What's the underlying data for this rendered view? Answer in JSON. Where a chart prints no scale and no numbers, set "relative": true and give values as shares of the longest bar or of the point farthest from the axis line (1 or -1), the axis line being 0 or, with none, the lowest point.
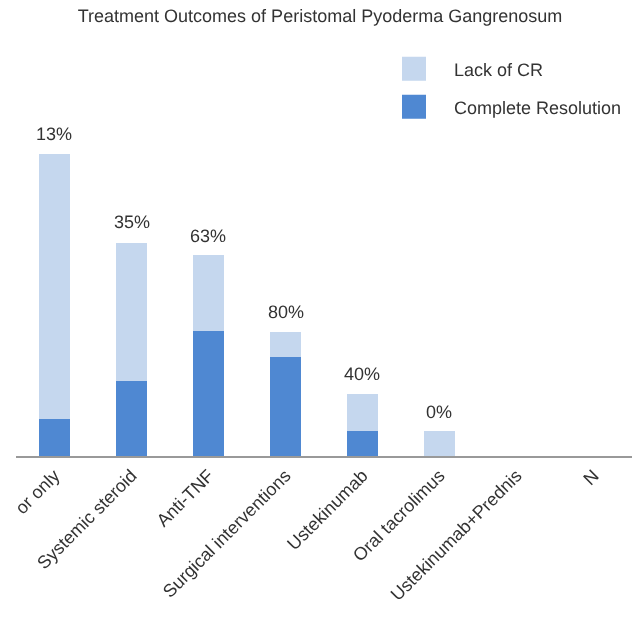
{
  "chart_data": {
    "type": "bar",
    "title": "Treatment Outcomes of Peristomal Pyoderma Gangrenosum",
    "relative": true,
    "stacked": true,
    "legend": "top right",
    "categories": [
      "or only",
      "Systemic steroid",
      "Anti-TNF",
      "Surgical interventions",
      "Ustekinumab",
      "Oral tacrolimus",
      "Ustekinumab+Prednis",
      "N"
    ],
    "series": [
      {
        "name": "Complete Resolution",
        "color": "#4f88d2",
        "values": [
          0.124,
          0.247,
          0.412,
          0.329,
          0.082,
          0,
          null,
          null
        ]
      },
      {
        "name": "Lack of CR",
        "color": "#c5d7ee",
        "values": [
          0.876,
          0.459,
          0.253,
          0.082,
          0.124,
          0.082,
          null,
          null
        ]
      }
    ],
    "annotations": [
      {
        "text": "13%",
        "x": "or only",
        "y": 1
      },
      {
        "text": "35%",
        "x": "Systemic steroid",
        "y": 0.706
      },
      {
        "text": "63%",
        "x": "Anti-TNF",
        "y": 0.665
      },
      {
        "text": "80%",
        "x": "Surgical interventions",
        "y": 0.411
      },
      {
        "text": "40%",
        "x": "Ustekinumab",
        "y": 0.206
      },
      {
        "text": "0%",
        "x": "Oral tacrolimus",
        "y": 0.082
      }
    ]
  }
}
